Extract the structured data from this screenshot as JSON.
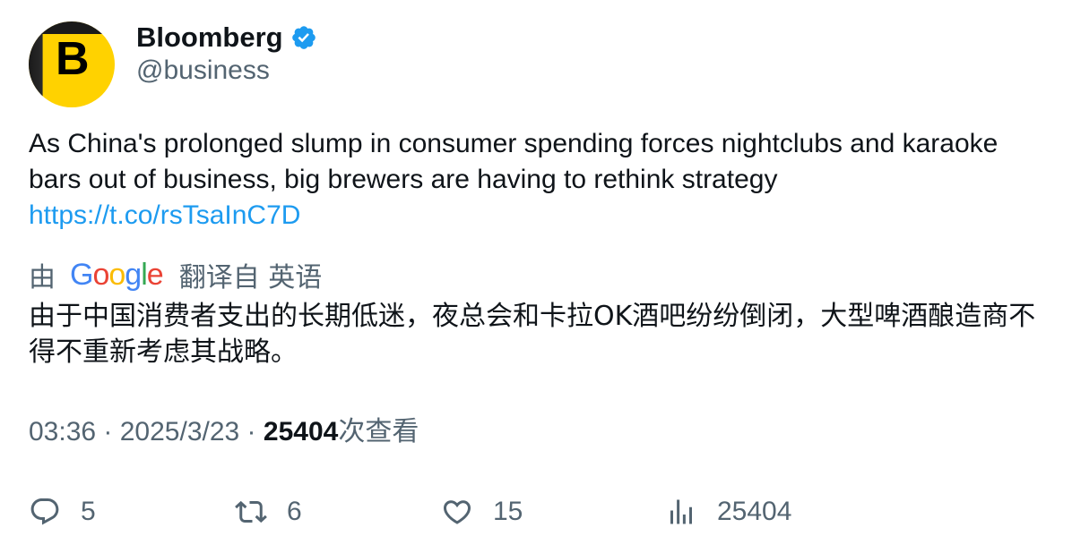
{
  "account": {
    "name": "Bloomberg",
    "handle": "@business",
    "avatar_letter": "B",
    "avatar_color": "#ffd200",
    "verified_icon": "verified-badge-icon",
    "verified_color": "#1d9bf0"
  },
  "tweet": {
    "text": "As China's prolonged slump in consumer spending forces nightclubs and karaoke bars out of business, big brewers are having to rethink strategy",
    "link": "https://t.co/rsTsaInC7D",
    "link_color": "#1d9bf0"
  },
  "translation": {
    "prefix": "由",
    "provider": "Google",
    "suffix": "翻译自 英语",
    "text": "由于中国消费者支出的长期低迷，夜总会和卡拉OK酒吧纷纷倒闭，大型啤酒酿造商不得不重新考虑其战略。"
  },
  "meta": {
    "time": "03:36",
    "separator": " · ",
    "date": "2025/3/23",
    "views_count": "25404",
    "views_label": "次查看"
  },
  "actions": {
    "replies": "5",
    "retweets": "6",
    "likes": "15",
    "views": "25404",
    "icons": [
      "reply-icon",
      "retweet-icon",
      "like-icon",
      "views-icon"
    ]
  }
}
